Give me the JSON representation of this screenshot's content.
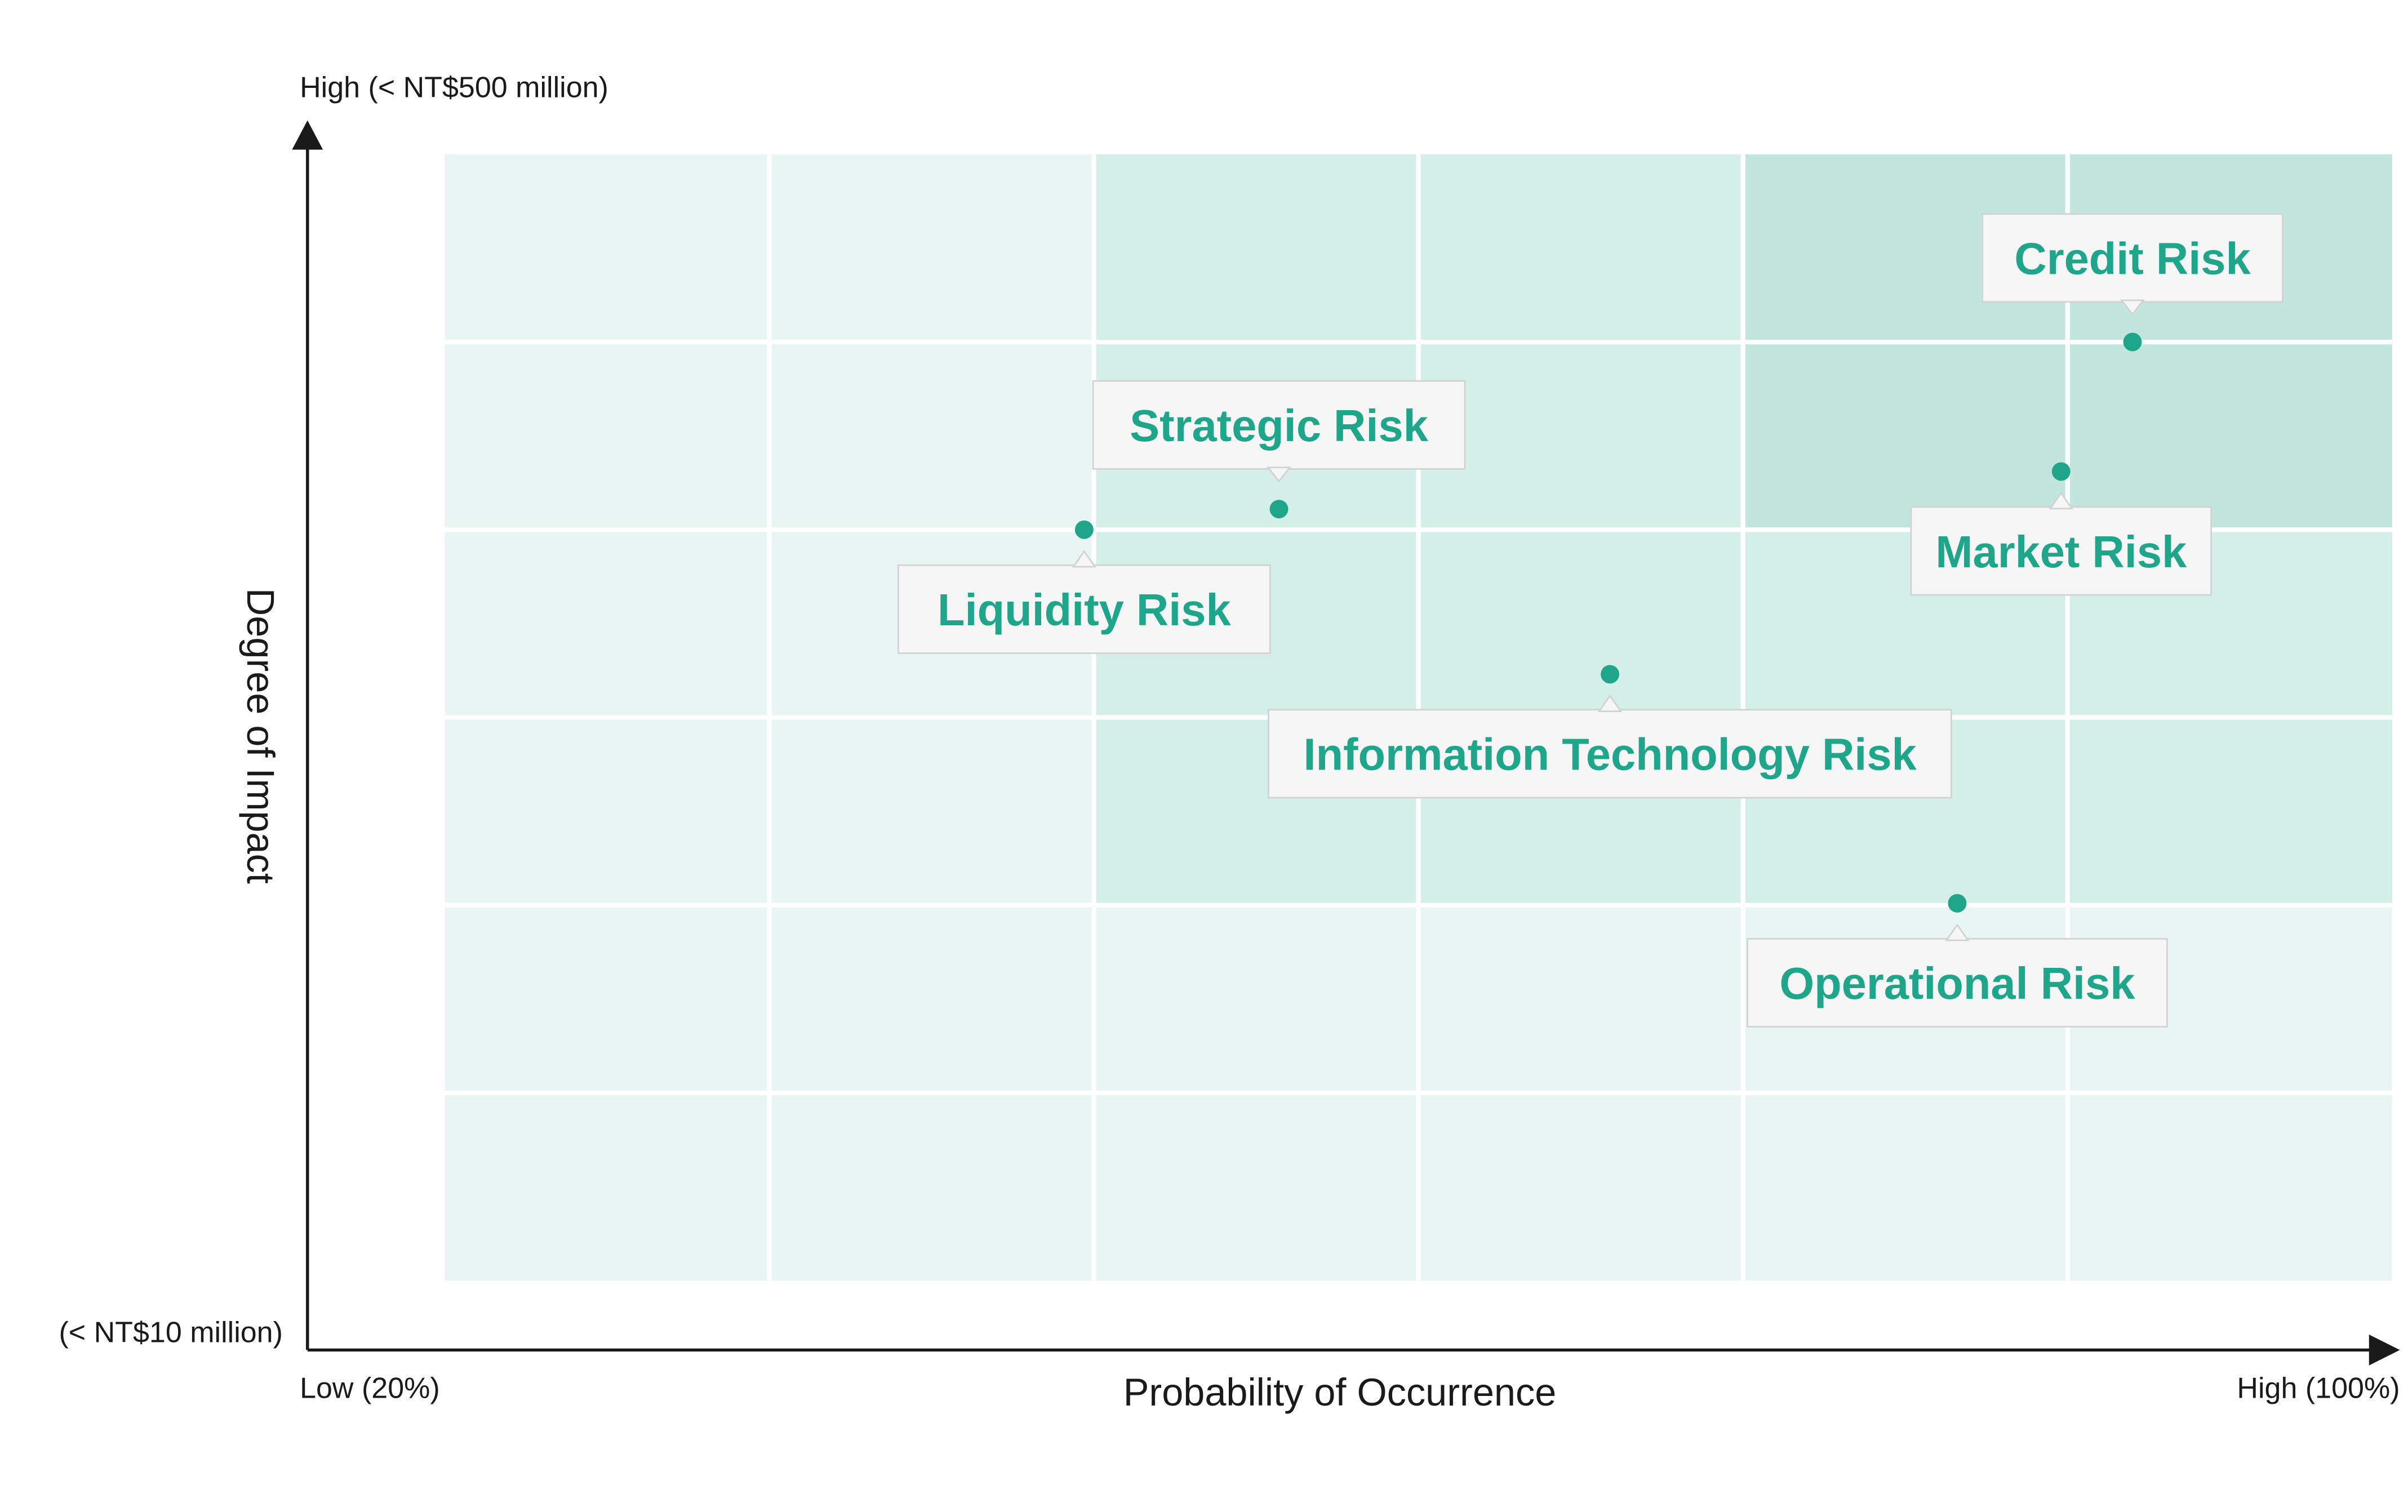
{
  "chart_data": {
    "type": "scatter",
    "title": "",
    "xlabel": "Probability of Occurrence",
    "ylabel": "Degree of Impact",
    "x_low_label": "Low (20%)",
    "x_high_label": "High (100%)",
    "y_low_label": "(< NT$10 million)",
    "y_high_label": "High (< NT$500 million)",
    "grid": true,
    "grid_cells": [
      6,
      6
    ],
    "xlim": [
      0,
      6
    ],
    "ylim": [
      0,
      6
    ],
    "points": [
      {
        "name": "Credit Risk",
        "x": 5.2,
        "y": 5.0
      },
      {
        "name": "Market Risk",
        "x": 4.98,
        "y": 4.31
      },
      {
        "name": "Strategic Risk",
        "x": 2.57,
        "y": 4.11
      },
      {
        "name": "Liquidity Risk",
        "x": 1.97,
        "y": 4.0
      },
      {
        "name": "Information Technology Risk",
        "x": 3.59,
        "y": 3.23
      },
      {
        "name": "Operational Risk",
        "x": 4.66,
        "y": 2.01
      }
    ],
    "colors": {
      "point": "#1fa68a",
      "label_text": "#1fa68a",
      "zone_low": "#e9f5f2",
      "zone_mid": "#d4eee8",
      "zone_high": "#c2e6de",
      "grid_line": "#ffffff",
      "axis": "#1a1a1a"
    }
  }
}
